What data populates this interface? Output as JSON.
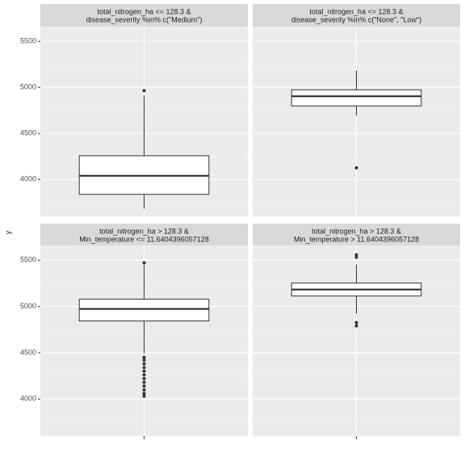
{
  "chart_data": [
    {
      "type": "box",
      "title": [
        "total_nitrogen_ha <= 128.3 &",
        "disease_severity %in% c(\"Medium\")"
      ],
      "ylabel": "y",
      "ylim": [
        3600,
        5660
      ],
      "yticks": [
        4000,
        4500,
        5000,
        5500
      ],
      "minor_yticks": [
        3750,
        4250,
        4750,
        5250
      ],
      "ytick_labels": true,
      "grid": true,
      "min": 3682,
      "q1": 3839,
      "median": 4040,
      "q3": 4258,
      "max": 4913,
      "outliers": [
        4965
      ]
    },
    {
      "type": "box",
      "title": [
        "total_nitrogen_ha <= 128.3 &",
        "disease_severity %in% c(\"None\", \"Low\")"
      ],
      "ylim": [
        3600,
        5660
      ],
      "yticks": [
        4000,
        4500,
        5000,
        5500
      ],
      "minor_yticks": [
        3750,
        4250,
        4750,
        5250
      ],
      "ytick_labels": false,
      "grid": true,
      "min": 4695,
      "q1": 4799,
      "median": 4904,
      "q3": 4974,
      "max": 5183,
      "outliers": [
        4127
      ]
    },
    {
      "type": "box",
      "title": [
        "total_nitrogen_ha > 128.3 &",
        "Min_temperature <= 11.6404396057128"
      ],
      "ylim": [
        3600,
        5660
      ],
      "yticks": [
        4000,
        4500,
        5000,
        5500
      ],
      "minor_yticks": [
        3750,
        4250,
        4750,
        5250
      ],
      "ytick_labels": true,
      "grid": true,
      "min": 4494,
      "q1": 4843,
      "median": 4974,
      "q3": 5079,
      "max": 5445,
      "outliers": [
        5471,
        4450,
        4420,
        4380,
        4340,
        4300,
        4260,
        4220,
        4180,
        4140,
        4100,
        4060,
        4030
      ]
    },
    {
      "type": "box",
      "title": [
        "total_nitrogen_ha > 128.3 &",
        "Min_temperature > 11.6404396057128"
      ],
      "ylim": [
        3600,
        5660
      ],
      "yticks": [
        4000,
        4500,
        5000,
        5500
      ],
      "minor_yticks": [
        3750,
        4250,
        4750,
        5250
      ],
      "ytick_labels": false,
      "grid": true,
      "min": 4921,
      "q1": 5113,
      "median": 5183,
      "q3": 5253,
      "max": 5454,
      "outliers": [
        5558,
        5532,
        4825,
        4790
      ]
    }
  ]
}
